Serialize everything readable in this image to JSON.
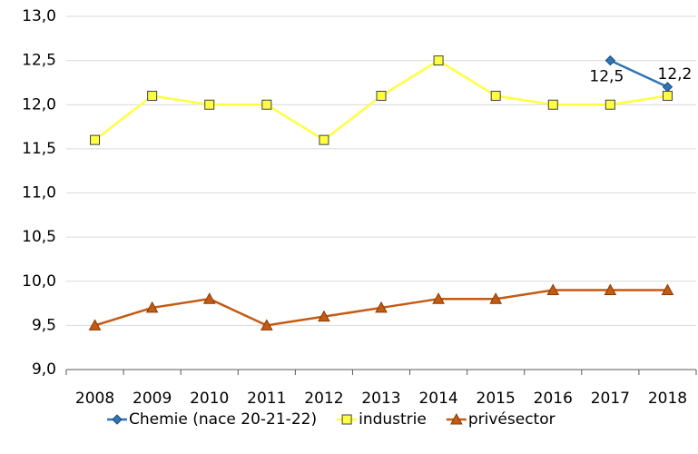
{
  "chart_data": {
    "type": "line",
    "categories": [
      "2008",
      "2009",
      "2010",
      "2011",
      "2012",
      "2013",
      "2014",
      "2015",
      "2016",
      "2017",
      "2018"
    ],
    "series": [
      {
        "name": "Chemie (nace 20-21-22)",
        "color": "#2e75b6",
        "marker": "diamond",
        "values": [
          null,
          null,
          null,
          null,
          null,
          null,
          null,
          null,
          null,
          12.5,
          12.2
        ],
        "value_labels": [
          null,
          null,
          null,
          null,
          null,
          null,
          null,
          null,
          null,
          "12,5",
          "12,2"
        ]
      },
      {
        "name": "industrie",
        "color": "#ffff40",
        "marker": "square",
        "values": [
          11.6,
          12.1,
          12.0,
          12.0,
          11.6,
          12.1,
          12.5,
          12.1,
          12.0,
          12.0,
          12.1
        ]
      },
      {
        "name": "privésector",
        "color": "#c55a11",
        "marker": "triangle",
        "values": [
          9.5,
          9.7,
          9.8,
          9.5,
          9.6,
          9.7,
          9.8,
          9.8,
          9.9,
          9.9,
          9.9
        ]
      }
    ],
    "ylim": [
      9,
      13
    ],
    "yticks": [
      {
        "value": 9,
        "label": "9,0"
      },
      {
        "value": 9.5,
        "label": "9,5"
      },
      {
        "value": 10,
        "label": "10,0"
      },
      {
        "value": 10.5,
        "label": "10,5"
      },
      {
        "value": 11,
        "label": "11,0"
      },
      {
        "value": 11.5,
        "label": "11,5"
      },
      {
        "value": 12,
        "label": "12,0"
      },
      {
        "value": 12.5,
        "label": "12,5"
      },
      {
        "value": 13,
        "label": "13,0"
      }
    ],
    "grid": true,
    "legend": "bottom"
  }
}
